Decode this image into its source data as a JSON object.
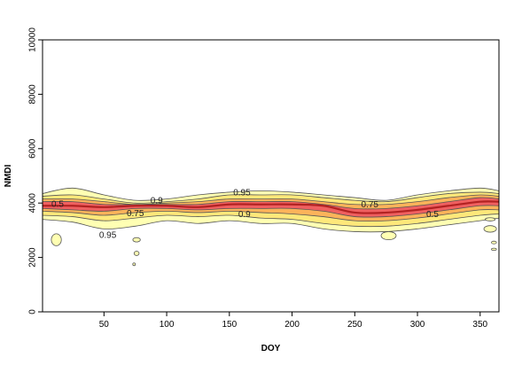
{
  "chart_data": {
    "type": "contour",
    "xlabel": "DOY",
    "ylabel": "NMDI",
    "xlim": [
      1,
      365
    ],
    "ylim": [
      0,
      10000
    ],
    "xticks": [
      50,
      100,
      150,
      200,
      250,
      300,
      350
    ],
    "yticks": [
      0,
      2000,
      4000,
      6000,
      8000,
      10000
    ],
    "grid": false,
    "levels": [
      0.95,
      0.9,
      0.75,
      0.5
    ],
    "level_colors": {
      "0.95": "#ffffb3",
      "0.9": "#fee87a",
      "0.75": "#fcb35a",
      "0.5": "#ef6060"
    },
    "median_color": "#b22222",
    "x": [
      1,
      25,
      50,
      75,
      100,
      125,
      150,
      175,
      200,
      225,
      250,
      275,
      300,
      325,
      350,
      365
    ],
    "median": [
      3900,
      3900,
      3850,
      3900,
      3900,
      3850,
      3950,
      3950,
      3950,
      3900,
      3650,
      3650,
      3750,
      3900,
      4050,
      4050
    ],
    "bands": [
      {
        "level": 0.95,
        "upper": [
          4350,
          4550,
          4300,
          4100,
          4150,
          4300,
          4400,
          4450,
          4400,
          4300,
          4200,
          4100,
          4300,
          4450,
          4550,
          4450
        ],
        "lower": [
          3400,
          3300,
          3050,
          3150,
          3350,
          3250,
          3350,
          3250,
          3250,
          3050,
          2950,
          2950,
          3050,
          3200,
          3350,
          3450
        ]
      },
      {
        "level": 0.9,
        "upper": [
          4250,
          4300,
          4150,
          4000,
          4050,
          4150,
          4300,
          4300,
          4300,
          4200,
          4100,
          4050,
          4200,
          4350,
          4400,
          4350
        ],
        "lower": [
          3550,
          3500,
          3350,
          3450,
          3550,
          3500,
          3550,
          3450,
          3400,
          3250,
          3150,
          3150,
          3250,
          3400,
          3550,
          3600
        ]
      },
      {
        "level": 0.75,
        "upper": [
          4150,
          4150,
          4050,
          3950,
          4000,
          4050,
          4150,
          4150,
          4150,
          4050,
          3950,
          3950,
          4050,
          4200,
          4300,
          4250
        ],
        "lower": [
          3700,
          3650,
          3550,
          3650,
          3700,
          3650,
          3700,
          3650,
          3600,
          3500,
          3350,
          3350,
          3450,
          3600,
          3750,
          3750
        ]
      },
      {
        "level": 0.5,
        "upper": [
          4050,
          4050,
          3950,
          3950,
          3950,
          3950,
          4050,
          4050,
          4050,
          3950,
          3800,
          3800,
          3900,
          4050,
          4200,
          4150
        ],
        "lower": [
          3800,
          3750,
          3700,
          3800,
          3800,
          3750,
          3800,
          3800,
          3800,
          3700,
          3500,
          3500,
          3600,
          3750,
          3900,
          3900
        ]
      }
    ],
    "islands": [
      {
        "x": 12,
        "y": 2650,
        "rx": 4,
        "ry": 220
      },
      {
        "x": 76,
        "y": 2650,
        "rx": 3,
        "ry": 80
      },
      {
        "x": 76,
        "y": 2150,
        "rx": 2,
        "ry": 80
      },
      {
        "x": 74,
        "y": 1750,
        "rx": 1,
        "ry": 50
      },
      {
        "x": 277,
        "y": 2800,
        "rx": 6,
        "ry": 150
      },
      {
        "x": 358,
        "y": 3400,
        "rx": 4,
        "ry": 60
      },
      {
        "x": 358,
        "y": 3050,
        "rx": 5,
        "ry": 120
      },
      {
        "x": 361,
        "y": 2550,
        "rx": 2,
        "ry": 50
      },
      {
        "x": 361,
        "y": 2300,
        "rx": 2,
        "ry": 40
      }
    ],
    "annotations": [
      {
        "text": "0.5",
        "x": 13,
        "y": 3980
      },
      {
        "text": "0.9",
        "x": 92,
        "y": 4100
      },
      {
        "text": "0.95",
        "x": 160,
        "y": 4400
      },
      {
        "text": "0.75",
        "x": 75,
        "y": 3630
      },
      {
        "text": "0.75",
        "x": 262,
        "y": 3950
      },
      {
        "text": "0.95",
        "x": 53,
        "y": 2840
      },
      {
        "text": "0.9",
        "x": 162,
        "y": 3600
      },
      {
        "text": "0.5",
        "x": 312,
        "y": 3600
      }
    ]
  }
}
